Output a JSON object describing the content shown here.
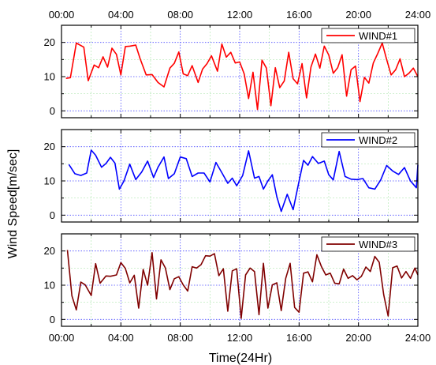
{
  "figure": {
    "ylabel": "Wind Speed[m/sec]",
    "xlabel": "Time(24Hr)"
  },
  "chart_data": [
    {
      "type": "line",
      "x_unit": "hours",
      "xlim": [
        0,
        24
      ],
      "ylim": [
        -2,
        25
      ],
      "x_tick_labels": [
        "00:00",
        "04:00",
        "08:00",
        "12:00",
        "16:00",
        "20:00",
        "24:00"
      ],
      "y_ticks": [
        0,
        10,
        20
      ],
      "grid": true,
      "legend_position": "top-right",
      "series": [
        {
          "name": "WIND#1",
          "color": "#ff0000",
          "x": [
            0.3,
            0.6,
            1.0,
            1.5,
            1.8,
            2.2,
            2.5,
            2.8,
            3.1,
            3.4,
            3.7,
            4.0,
            4.3,
            4.6,
            5.0,
            5.3,
            5.7,
            6.1,
            6.5,
            6.9,
            7.3,
            7.6,
            7.9,
            8.2,
            8.5,
            8.8,
            9.2,
            9.5,
            9.8,
            10.1,
            10.5,
            10.8,
            11.1,
            11.4,
            11.7,
            12.0,
            12.3,
            12.6,
            12.9,
            13.2,
            13.5,
            13.8,
            14.1,
            14.4,
            14.7,
            15.0,
            15.3,
            15.6,
            15.9,
            16.2,
            16.5,
            16.8,
            17.1,
            17.4,
            17.7,
            18.0,
            18.3,
            18.6,
            18.9,
            19.2,
            19.5,
            19.8,
            20.1,
            20.4,
            20.7,
            21.0,
            21.3,
            21.6,
            21.9,
            22.2,
            22.5,
            22.8,
            23.1,
            23.4,
            23.7,
            24.0
          ],
          "values": [
            9.5,
            9.7,
            19.8,
            18.6,
            8.8,
            13.4,
            12.6,
            15.8,
            12.8,
            18.3,
            16.5,
            10.5,
            18.8,
            18.9,
            19.2,
            15.2,
            10.5,
            10.6,
            8.3,
            7.0,
            12.5,
            13.9,
            17.2,
            10.8,
            10.3,
            13.2,
            8.3,
            12.2,
            13.8,
            16.1,
            11.6,
            19.5,
            15.7,
            17.1,
            14.0,
            14.3,
            10.8,
            3.6,
            11.3,
            0.4,
            14.8,
            12.5,
            1.5,
            12.6,
            6.8,
            8.7,
            17.1,
            9.4,
            7.9,
            13.8,
            3.8,
            12.8,
            16.6,
            12.5,
            18.9,
            16.3,
            11.0,
            12.6,
            16.4,
            4.3,
            12.0,
            13.1,
            2.7,
            9.8,
            8.1,
            14.0,
            16.8,
            19.8,
            15.0,
            10.5,
            12.0,
            15.2,
            10.0,
            11.0,
            12.5,
            10.0
          ]
        }
      ]
    },
    {
      "type": "line",
      "x_unit": "hours",
      "xlim": [
        0,
        24
      ],
      "ylim": [
        -2,
        25
      ],
      "x_tick_labels": [
        "00:00",
        "04:00",
        "08:00",
        "12:00",
        "16:00",
        "20:00",
        "24:00"
      ],
      "y_ticks": [
        0,
        10,
        20
      ],
      "grid": true,
      "legend_position": "top-right",
      "series": [
        {
          "name": "WIND#2",
          "color": "#0000ff",
          "x": [
            0.5,
            0.9,
            1.3,
            1.7,
            2.0,
            2.3,
            2.7,
            3.0,
            3.3,
            3.6,
            3.9,
            4.2,
            4.6,
            5.0,
            5.4,
            5.8,
            6.2,
            6.5,
            6.9,
            7.2,
            7.6,
            8.0,
            8.4,
            8.8,
            9.2,
            9.6,
            10.0,
            10.4,
            10.8,
            11.2,
            11.5,
            11.8,
            12.2,
            12.6,
            13.0,
            13.3,
            13.6,
            13.9,
            14.2,
            14.5,
            14.8,
            15.2,
            15.6,
            16.0,
            16.3,
            16.6,
            16.9,
            17.3,
            17.7,
            18.0,
            18.3,
            18.7,
            19.1,
            19.5,
            19.9,
            20.3,
            20.7,
            21.1,
            21.5,
            21.9,
            22.3,
            22.7,
            23.1,
            23.5,
            23.9,
            24.0
          ],
          "values": [
            14.8,
            12.1,
            11.6,
            12.3,
            19.0,
            17.5,
            14.0,
            15.1,
            16.9,
            15.2,
            7.6,
            9.9,
            14.9,
            10.4,
            12.6,
            15.8,
            11.0,
            14.0,
            17.0,
            10.7,
            12.1,
            17.0,
            16.5,
            11.3,
            12.3,
            12.3,
            9.7,
            15.4,
            12.4,
            9.3,
            10.8,
            8.6,
            11.6,
            18.8,
            10.8,
            11.3,
            7.6,
            10.0,
            11.8,
            5.4,
            1.1,
            6.1,
            1.6,
            9.9,
            16.0,
            14.6,
            17.1,
            15.1,
            15.8,
            11.8,
            10.3,
            18.6,
            11.3,
            10.5,
            10.4,
            10.7,
            8.0,
            7.6,
            10.3,
            14.5,
            12.9,
            11.9,
            13.9,
            10.0,
            8.0,
            14.7
          ]
        }
      ]
    },
    {
      "type": "line",
      "x_unit": "hours",
      "xlim": [
        0,
        24
      ],
      "ylim": [
        -2,
        25
      ],
      "x_tick_labels": [
        "00:00",
        "04:00",
        "08:00",
        "12:00",
        "16:00",
        "20:00",
        "24:00"
      ],
      "y_ticks": [
        0,
        10,
        20
      ],
      "grid": true,
      "legend_position": "top-right",
      "series": [
        {
          "name": "WIND#3",
          "color": "#800000",
          "x": [
            0.4,
            0.7,
            1.0,
            1.3,
            1.6,
            2.0,
            2.3,
            2.6,
            3.0,
            3.3,
            3.7,
            4.0,
            4.3,
            4.6,
            4.9,
            5.2,
            5.5,
            5.8,
            6.1,
            6.4,
            6.7,
            7.0,
            7.3,
            7.6,
            7.9,
            8.2,
            8.5,
            8.8,
            9.1,
            9.4,
            9.7,
            10.0,
            10.3,
            10.6,
            10.9,
            11.2,
            11.5,
            11.8,
            12.1,
            12.4,
            12.7,
            13.0,
            13.3,
            13.6,
            13.9,
            14.2,
            14.5,
            14.8,
            15.1,
            15.4,
            15.7,
            16.0,
            16.3,
            16.6,
            16.9,
            17.2,
            17.5,
            17.8,
            18.1,
            18.4,
            18.7,
            19.0,
            19.3,
            19.6,
            19.9,
            20.2,
            20.5,
            20.8,
            21.1,
            21.4,
            21.7,
            22.0,
            22.3,
            22.6,
            22.9,
            23.2,
            23.5,
            23.8,
            24.0
          ],
          "values": [
            20.3,
            6.9,
            2.8,
            10.9,
            10.1,
            7.0,
            16.3,
            10.6,
            12.7,
            12.6,
            13.0,
            16.6,
            14.9,
            10.7,
            12.9,
            3.3,
            14.6,
            10.0,
            19.5,
            6.0,
            17.4,
            15.0,
            8.7,
            11.9,
            12.5,
            10.1,
            8.3,
            15.4,
            15.0,
            16.0,
            18.6,
            18.5,
            19.2,
            12.8,
            14.8,
            2.4,
            14.2,
            14.8,
            0.3,
            13.0,
            15.0,
            14.0,
            1.4,
            16.4,
            3.3,
            10.1,
            10.7,
            2.6,
            12.0,
            16.4,
            3.5,
            2.1,
            13.5,
            13.9,
            11.0,
            18.9,
            15.5,
            13.0,
            13.5,
            10.6,
            10.4,
            14.7,
            12.0,
            12.8,
            11.6,
            12.6,
            15.3,
            14.0,
            18.4,
            16.7,
            7.2,
            1.0,
            15.1,
            15.6,
            12.1,
            14.0,
            12.0,
            15.0,
            13.0
          ]
        }
      ]
    }
  ]
}
